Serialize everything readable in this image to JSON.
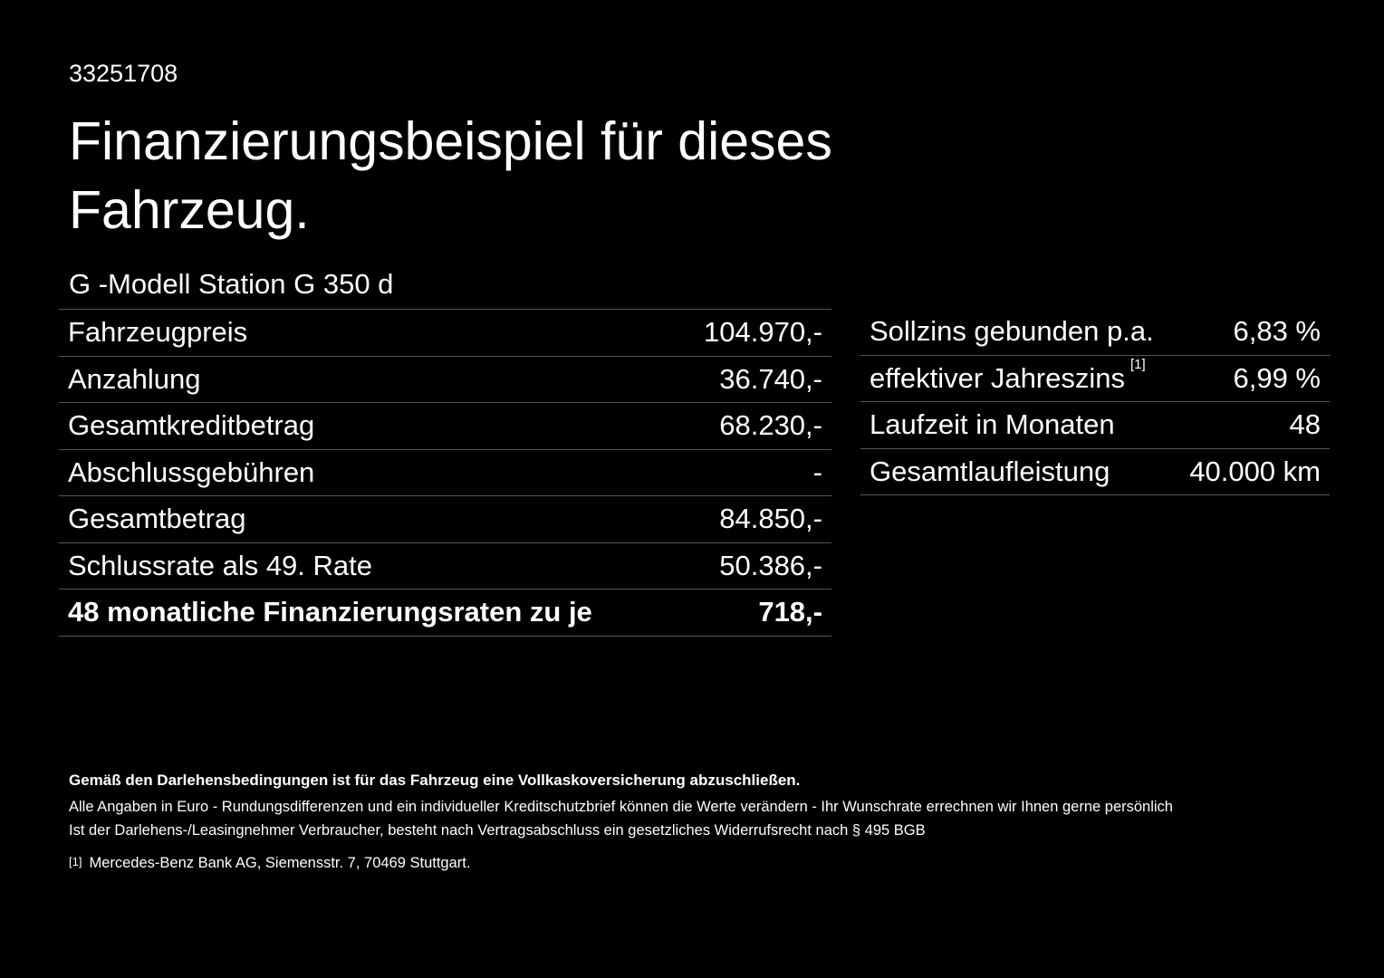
{
  "header": {
    "id": "33251708",
    "title": "Finanzierungsbeispiel für dieses Fahrzeug."
  },
  "model": "G -Modell Station G 350 d",
  "left_table": {
    "rows": [
      [
        "Fahrzeugpreis",
        "104.970,-"
      ],
      [
        "Anzahlung",
        "36.740,-"
      ],
      [
        "Gesamtkreditbetrag",
        "68.230,-"
      ],
      [
        "Abschlussgebühren",
        "-"
      ],
      [
        "Gesamtbetrag",
        "84.850,-"
      ],
      [
        "Schlussrate als 49. Rate",
        "50.386,-"
      ],
      [
        "48 monatliche Finanzierungsraten zu je",
        "718,-"
      ]
    ]
  },
  "right_table": {
    "rows": [
      [
        "Sollzins gebunden p.a.",
        "6,83 %"
      ],
      [
        "effektiver Jahreszins",
        "6,99 %"
      ],
      [
        "Laufzeit in Monaten",
        "48"
      ],
      [
        "Gesamtlaufleistung",
        "40.000 km"
      ]
    ],
    "note_marker": "[1]"
  },
  "footer": {
    "bold_line": "Gemäß den Darlehensbedingungen ist für das Fahrzeug eine Vollkaskoversicherung abzuschließen.",
    "lines": [
      "Alle Angaben in Euro - Rundungsdifferenzen und ein individueller Kreditschutzbrief können die Werte verändern - Ihr Wunschrate errechnen wir Ihnen gerne persönlich",
      "Ist der Darlehens-/Leasingnehmer Verbraucher, besteht nach Vertragsabschluss ein gesetzliches Widerrufsrecht nach § 495 BGB"
    ],
    "footnote": {
      "marker": "[1]",
      "text": "Mercedes-Benz Bank AG, Siemensstr. 7, 70469 Stuttgart."
    }
  }
}
